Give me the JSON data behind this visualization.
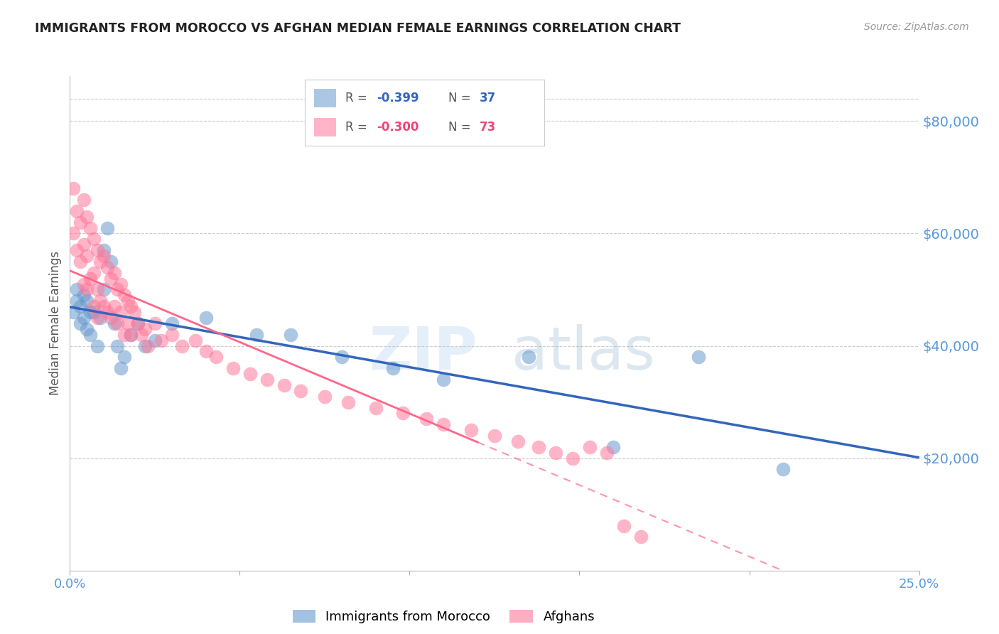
{
  "title": "IMMIGRANTS FROM MOROCCO VS AFGHAN MEDIAN FEMALE EARNINGS CORRELATION CHART",
  "source": "Source: ZipAtlas.com",
  "ylabel": "Median Female Earnings",
  "xlim": [
    0.0,
    0.25
  ],
  "ylim": [
    0,
    88000
  ],
  "yticks": [
    20000,
    40000,
    60000,
    80000
  ],
  "ytick_labels": [
    "$20,000",
    "$40,000",
    "$60,000",
    "$80,000"
  ],
  "xticks": [
    0.0,
    0.05,
    0.1,
    0.15,
    0.2,
    0.25
  ],
  "xtick_labels": [
    "0.0%",
    "",
    "",
    "",
    "",
    "25.0%"
  ],
  "legend_label1": "Immigrants from Morocco",
  "legend_label2": "Afghans",
  "watermark_zip": "ZIP",
  "watermark_atlas": "atlas",
  "blue_color": "#6699CC",
  "pink_color": "#FF7799",
  "line_blue": "#3366BB",
  "line_pink": "#FF6688",
  "tick_label_color": "#5599DD",
  "axis_label_color": "#555555",
  "grid_color": "#CCCCCC",
  "background_color": "#FFFFFF",
  "r1": "-0.399",
  "n1": "37",
  "r2": "-0.300",
  "n2": "73",
  "morocco_x": [
    0.001,
    0.002,
    0.002,
    0.003,
    0.003,
    0.004,
    0.004,
    0.005,
    0.005,
    0.006,
    0.006,
    0.007,
    0.008,
    0.009,
    0.01,
    0.01,
    0.011,
    0.012,
    0.013,
    0.014,
    0.015,
    0.016,
    0.018,
    0.02,
    0.022,
    0.025,
    0.03,
    0.04,
    0.055,
    0.065,
    0.08,
    0.095,
    0.11,
    0.135,
    0.16,
    0.185,
    0.21
  ],
  "morocco_y": [
    46000,
    50000,
    48000,
    47000,
    44000,
    49000,
    45000,
    43000,
    48000,
    46000,
    42000,
    46000,
    40000,
    45000,
    57000,
    50000,
    61000,
    55000,
    44000,
    40000,
    36000,
    38000,
    42000,
    44000,
    40000,
    41000,
    44000,
    45000,
    42000,
    42000,
    38000,
    36000,
    34000,
    38000,
    22000,
    38000,
    18000
  ],
  "afghan_x": [
    0.001,
    0.001,
    0.002,
    0.002,
    0.003,
    0.003,
    0.004,
    0.004,
    0.004,
    0.005,
    0.005,
    0.005,
    0.006,
    0.006,
    0.007,
    0.007,
    0.007,
    0.008,
    0.008,
    0.008,
    0.009,
    0.009,
    0.01,
    0.01,
    0.011,
    0.011,
    0.012,
    0.012,
    0.013,
    0.013,
    0.014,
    0.014,
    0.015,
    0.015,
    0.016,
    0.016,
    0.017,
    0.017,
    0.018,
    0.018,
    0.019,
    0.02,
    0.021,
    0.022,
    0.023,
    0.025,
    0.027,
    0.03,
    0.033,
    0.037,
    0.04,
    0.043,
    0.048,
    0.053,
    0.058,
    0.063,
    0.068,
    0.075,
    0.082,
    0.09,
    0.098,
    0.105,
    0.11,
    0.118,
    0.125,
    0.132,
    0.138,
    0.143,
    0.148,
    0.153,
    0.158,
    0.163,
    0.168
  ],
  "afghan_y": [
    68000,
    60000,
    64000,
    57000,
    62000,
    55000,
    66000,
    58000,
    51000,
    63000,
    56000,
    50000,
    61000,
    52000,
    59000,
    53000,
    47000,
    57000,
    50000,
    45000,
    55000,
    48000,
    56000,
    47000,
    54000,
    46000,
    52000,
    45000,
    53000,
    47000,
    50000,
    44000,
    51000,
    46000,
    49000,
    42000,
    48000,
    44000,
    47000,
    42000,
    46000,
    44000,
    42000,
    43000,
    40000,
    44000,
    41000,
    42000,
    40000,
    41000,
    39000,
    38000,
    36000,
    35000,
    34000,
    33000,
    32000,
    31000,
    30000,
    29000,
    28000,
    27000,
    26000,
    25000,
    24000,
    23000,
    22000,
    21000,
    20000,
    22000,
    21000,
    8000,
    6000
  ]
}
